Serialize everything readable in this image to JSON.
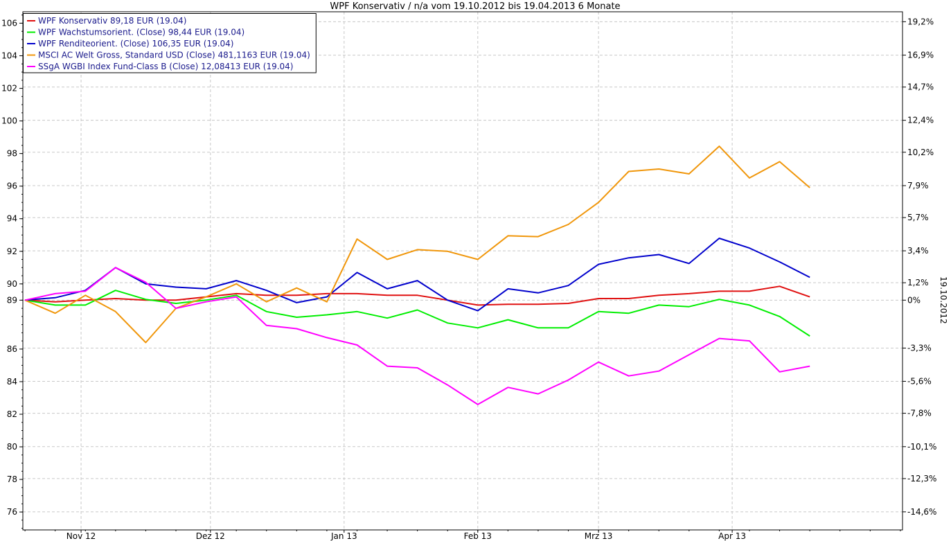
{
  "chart_data": {
    "type": "line",
    "title": "WPF Konservativ / n/a vom 19.10.2012 bis 19.04.2013 6 Monate",
    "x": [
      "19.10.2012",
      "26.10.2012",
      "02.11.2012",
      "09.11.2012",
      "16.11.2012",
      "23.11.2012",
      "30.11.2012",
      "07.12.2012",
      "14.12.2012",
      "21.12.2012",
      "28.12.2012",
      "04.01.2013",
      "11.01.2013",
      "18.01.2013",
      "25.01.2013",
      "01.02.2013",
      "08.02.2013",
      "15.02.2013",
      "22.02.2013",
      "01.03.2013",
      "08.03.2013",
      "15.03.2013",
      "22.03.2013",
      "29.03.2013",
      "05.04.2013",
      "12.04.2013",
      "19.04.2013"
    ],
    "x_ticks": [
      {
        "label": "Nov 12",
        "date": "2012-11-01"
      },
      {
        "label": "Dez 12",
        "date": "2012-12-01"
      },
      {
        "label": "Jan 13",
        "date": "2013-01-01"
      },
      {
        "label": "Feb 13",
        "date": "2013-02-01"
      },
      {
        "label": "Mrz 13",
        "date": "2013-03-01"
      },
      {
        "label": "Apr 13",
        "date": "2013-04-01"
      }
    ],
    "y_left_ticks": [
      76,
      78,
      80,
      82,
      84,
      86,
      89,
      90,
      92,
      94,
      96,
      98,
      100,
      102,
      104,
      106
    ],
    "y_right_ticks": [
      {
        "label": "19,2%",
        "value": 106.09
      },
      {
        "label": "16,9%",
        "value": 104.04
      },
      {
        "label": "14,7%",
        "value": 102.08
      },
      {
        "label": "12,4%",
        "value": 100.04
      },
      {
        "label": "10,2%",
        "value": 98.08
      },
      {
        "label": "7,9%",
        "value": 96.03
      },
      {
        "label": "5,7%",
        "value": 94.07
      },
      {
        "label": "3,4%",
        "value": 92.03
      },
      {
        "label": "1,2%",
        "value": 90.07
      },
      {
        "label": "0%",
        "value": 89.0
      },
      {
        "label": "-3,3%",
        "value": 86.06
      },
      {
        "label": "-5,6%",
        "value": 84.02
      },
      {
        "label": "-7,8%",
        "value": 82.06
      },
      {
        "label": "-10,1%",
        "value": 80.01
      },
      {
        "label": "-12,3%",
        "value": 78.05
      },
      {
        "label": "-14,6%",
        "value": 76.01
      }
    ],
    "right_axis_label": "19.10.2012",
    "ylim": [
      74.9,
      106.7
    ],
    "grid": true,
    "legend_position": "top-left",
    "series": [
      {
        "name": "WPF Konservativ 89,18 EUR (19.04)",
        "color": "#e01010",
        "values": [
          89.0,
          88.9,
          89.0,
          89.1,
          89.0,
          89.0,
          89.2,
          89.4,
          89.3,
          89.3,
          89.4,
          89.4,
          89.3,
          89.3,
          89.0,
          88.7,
          88.75,
          88.75,
          88.8,
          89.1,
          89.1,
          89.3,
          89.4,
          89.55,
          89.55,
          89.85,
          89.2
        ]
      },
      {
        "name": "WPF Wachstumsorient. (Close) 98,44 EUR (19.04)",
        "color": "#00ee00",
        "values": [
          89.0,
          88.7,
          88.7,
          89.6,
          89.05,
          88.8,
          89.0,
          89.3,
          88.3,
          87.95,
          88.1,
          88.3,
          87.9,
          88.4,
          87.6,
          87.3,
          87.8,
          87.3,
          87.3,
          88.3,
          88.2,
          88.7,
          88.6,
          89.05,
          88.7,
          88.0,
          86.8
        ]
      },
      {
        "name": "WPF Renditeorient. (Close) 106,35 EUR (19.04)",
        "color": "#0000cc",
        "values": [
          89.0,
          89.15,
          89.6,
          91.0,
          90.0,
          89.8,
          89.7,
          90.2,
          89.6,
          88.85,
          89.2,
          90.7,
          89.7,
          90.2,
          89.0,
          88.35,
          89.7,
          89.45,
          89.9,
          91.2,
          91.6,
          91.8,
          91.25,
          92.8,
          92.2,
          91.35,
          90.4
        ]
      },
      {
        "name": "MSCI AC Welt Gross, Standard USD (Close) 481,1163 EUR (19.04)",
        "color": "#f0960a",
        "values": [
          89.0,
          88.2,
          89.3,
          88.3,
          86.4,
          88.5,
          89.2,
          90.0,
          88.9,
          89.75,
          88.9,
          92.75,
          91.5,
          92.1,
          92.0,
          91.5,
          92.95,
          92.9,
          93.65,
          95.0,
          96.9,
          97.05,
          96.75,
          98.45,
          96.5,
          97.5,
          95.9
        ]
      },
      {
        "name": "SSgA WGBI Index Fund-Class B (Close) 12,08413 EUR (19.04)",
        "color": "#ff00ff",
        "values": [
          89.0,
          89.4,
          89.55,
          91.0,
          90.1,
          88.5,
          88.9,
          89.2,
          87.45,
          87.25,
          86.7,
          86.25,
          84.95,
          84.85,
          83.8,
          82.6,
          83.65,
          83.25,
          84.1,
          85.2,
          84.35,
          84.65,
          85.65,
          86.65,
          86.5,
          84.6,
          84.95
        ]
      }
    ]
  }
}
